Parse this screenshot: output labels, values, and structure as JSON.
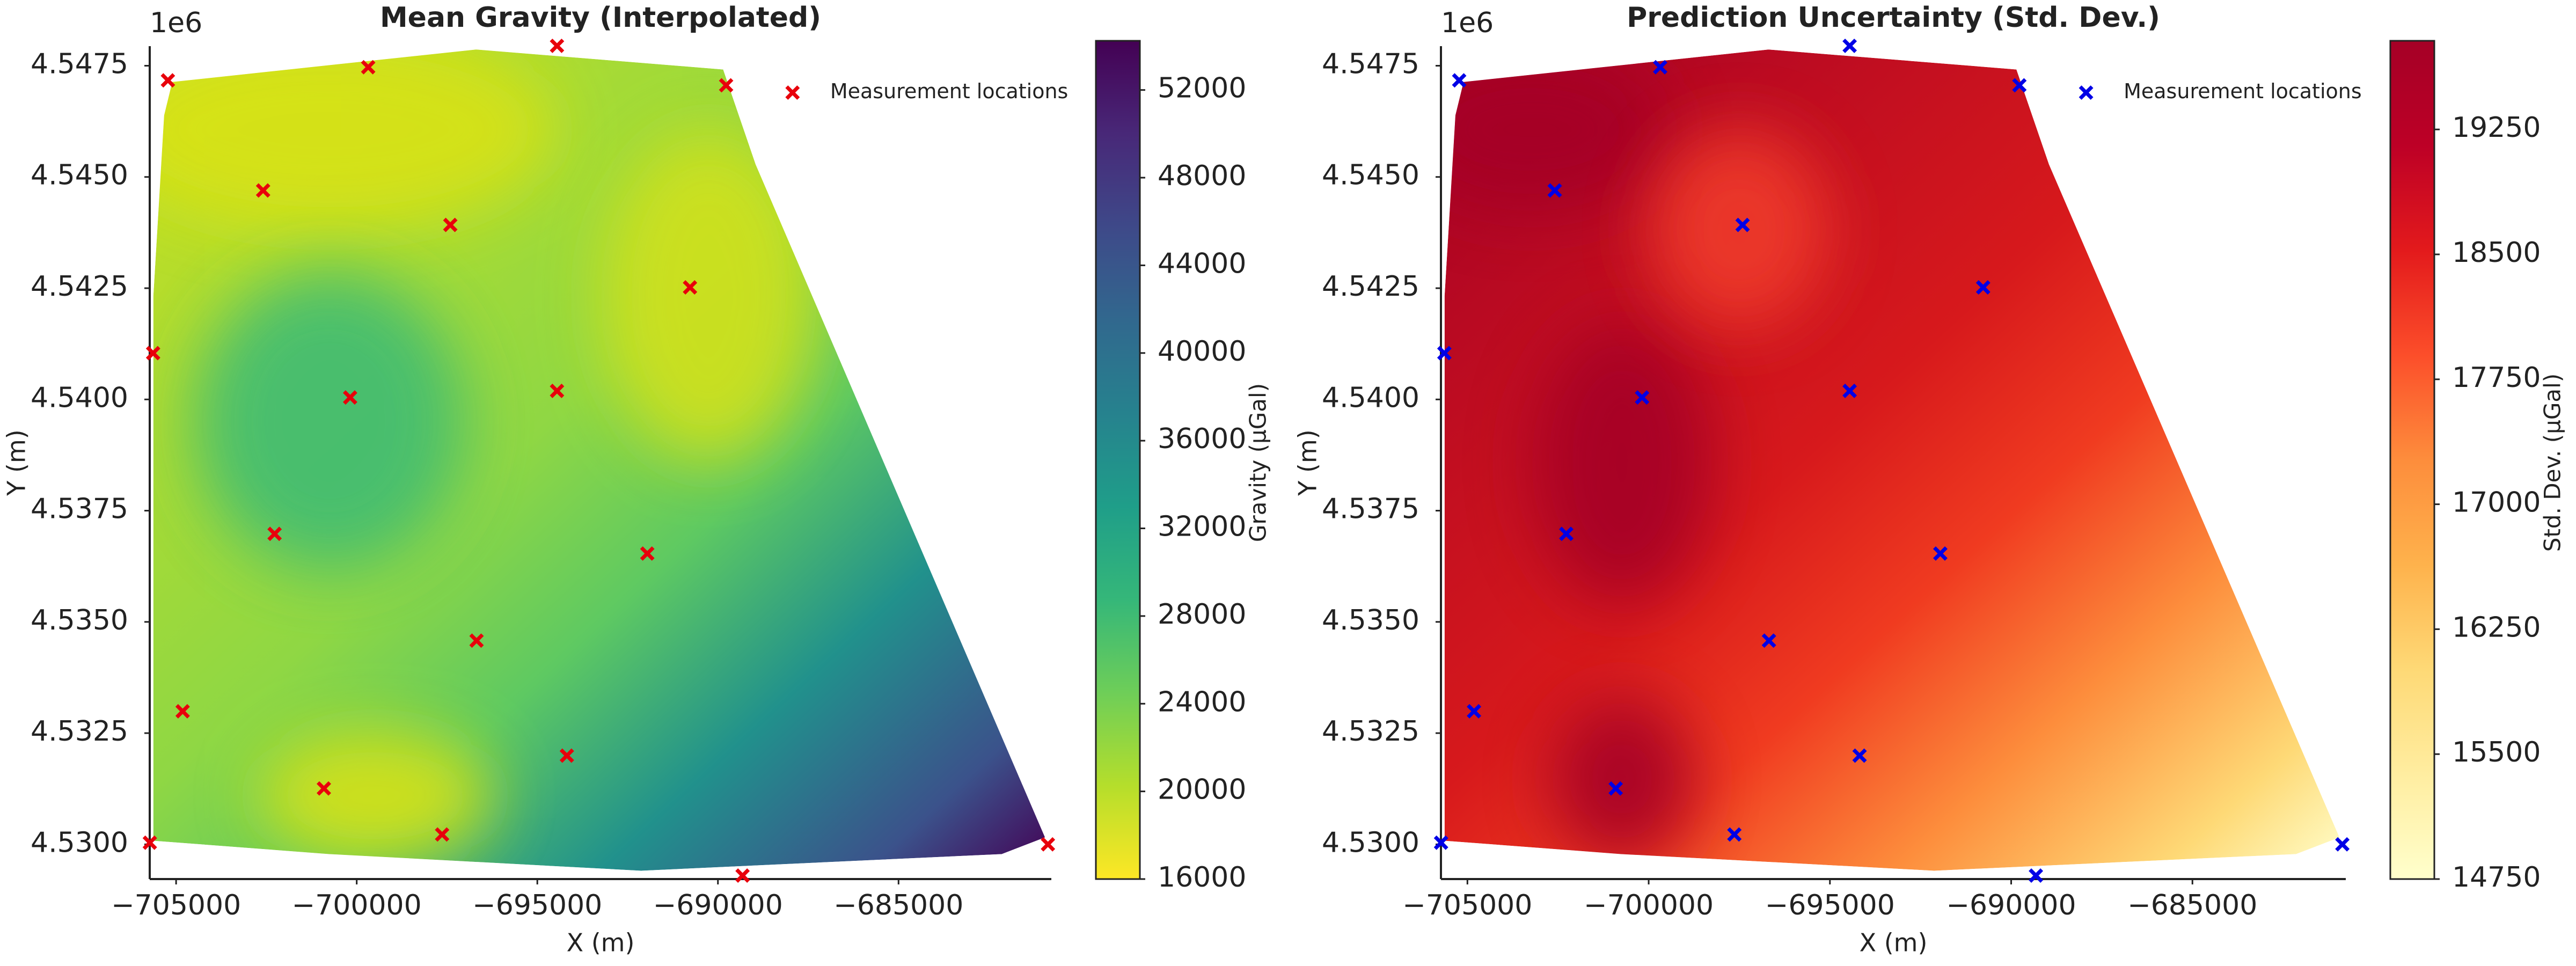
{
  "chart_data": [
    {
      "type": "scatter",
      "title": "Mean Gravity (Interpolated)",
      "xlabel": "X (m)",
      "ylabel": "Y (m)",
      "offset_text": "1e6",
      "xlim": [
        -705730,
        -680770
      ],
      "ylim": [
        4529220,
        4547940
      ],
      "xticks": [
        {
          "value": -705000,
          "label": "−705000"
        },
        {
          "value": -700000,
          "label": "−700000"
        },
        {
          "value": -695000,
          "label": "−695000"
        },
        {
          "value": -690000,
          "label": "−690000"
        },
        {
          "value": -685000,
          "label": "−685000"
        }
      ],
      "yticks": [
        {
          "value": 4530000,
          "label": "4.5300"
        },
        {
          "value": 4532500,
          "label": "4.5325"
        },
        {
          "value": 4535000,
          "label": "4.5350"
        },
        {
          "value": 4537500,
          "label": "4.5375"
        },
        {
          "value": 4540000,
          "label": "4.5400"
        },
        {
          "value": 4542500,
          "label": "4.5425"
        },
        {
          "value": 4545000,
          "label": "4.5450"
        },
        {
          "value": 4547500,
          "label": "4.5475"
        }
      ],
      "legend": "upper right",
      "series": [
        {
          "name": "Measurement locations",
          "color": "#e8000b",
          "x": [
            -705227,
            -699682,
            -694455,
            -689773,
            -702591,
            -697409,
            -690773,
            -705636,
            -700182,
            -694455,
            -702273,
            -691955,
            -696682,
            -704818,
            -694182,
            -700909,
            -697636,
            -705727,
            -689318,
            -680864
          ],
          "y": [
            4547171,
            4547467,
            4547947,
            4547060,
            4544697,
            4543922,
            4542518,
            4541041,
            4540044,
            4540192,
            4536979,
            4536536,
            4534579,
            4532991,
            4531994,
            4531256,
            4530222,
            4530037,
            4529298,
            4530000
          ]
        }
      ],
      "colorbar": {
        "label": "Gravity (μGal)",
        "lim": [
          16000,
          54000
        ],
        "ticks": [
          16000,
          20000,
          24000,
          28000,
          32000,
          36000,
          40000,
          44000,
          48000,
          52000
        ],
        "colors": [
          "#fde725",
          "#b5de2b",
          "#6ece58",
          "#35b779",
          "#1f9e89",
          "#26828e",
          "#31688e",
          "#3e4989",
          "#482878",
          "#440154"
        ]
      }
    },
    {
      "type": "scatter",
      "title": "Prediction Uncertainty (Std. Dev.)",
      "xlabel": "X (m)",
      "ylabel": "Y (m)",
      "offset_text": "1e6",
      "xlim": [
        -705730,
        -680770
      ],
      "ylim": [
        4529220,
        4547940
      ],
      "xticks": [
        {
          "value": -705000,
          "label": "−705000"
        },
        {
          "value": -700000,
          "label": "−700000"
        },
        {
          "value": -695000,
          "label": "−695000"
        },
        {
          "value": -690000,
          "label": "−690000"
        },
        {
          "value": -685000,
          "label": "−685000"
        }
      ],
      "yticks": [
        {
          "value": 4530000,
          "label": "4.5300"
        },
        {
          "value": 4532500,
          "label": "4.5325"
        },
        {
          "value": 4535000,
          "label": "4.5350"
        },
        {
          "value": 4537500,
          "label": "4.5375"
        },
        {
          "value": 4540000,
          "label": "4.5400"
        },
        {
          "value": 4542500,
          "label": "4.5425"
        },
        {
          "value": 4545000,
          "label": "4.5450"
        },
        {
          "value": 4547500,
          "label": "4.5475"
        }
      ],
      "legend": "upper right",
      "series": [
        {
          "name": "Measurement locations",
          "color": "#0000e6",
          "x": [
            -705227,
            -699682,
            -694455,
            -689773,
            -702591,
            -697409,
            -690773,
            -705636,
            -700182,
            -694455,
            -702273,
            -691955,
            -696682,
            -704818,
            -694182,
            -700909,
            -697636,
            -705727,
            -689318,
            -680864
          ],
          "y": [
            4547171,
            4547467,
            4547947,
            4547060,
            4544697,
            4543922,
            4542518,
            4541041,
            4540044,
            4540192,
            4536979,
            4536536,
            4534579,
            4532991,
            4531994,
            4531256,
            4530222,
            4530037,
            4529298,
            4530000
          ]
        }
      ],
      "colorbar": {
        "label": "Std. Dev. (μGal)",
        "lim": [
          14750,
          19750
        ],
        "ticks": [
          14750,
          15500,
          16250,
          17000,
          17750,
          18500,
          19250
        ],
        "colors": [
          "#ffffcc",
          "#ffeda0",
          "#fed976",
          "#feb24c",
          "#fd8d3c",
          "#fc4e2a",
          "#e31a1c",
          "#bd0026",
          "#a50026"
        ]
      }
    }
  ]
}
